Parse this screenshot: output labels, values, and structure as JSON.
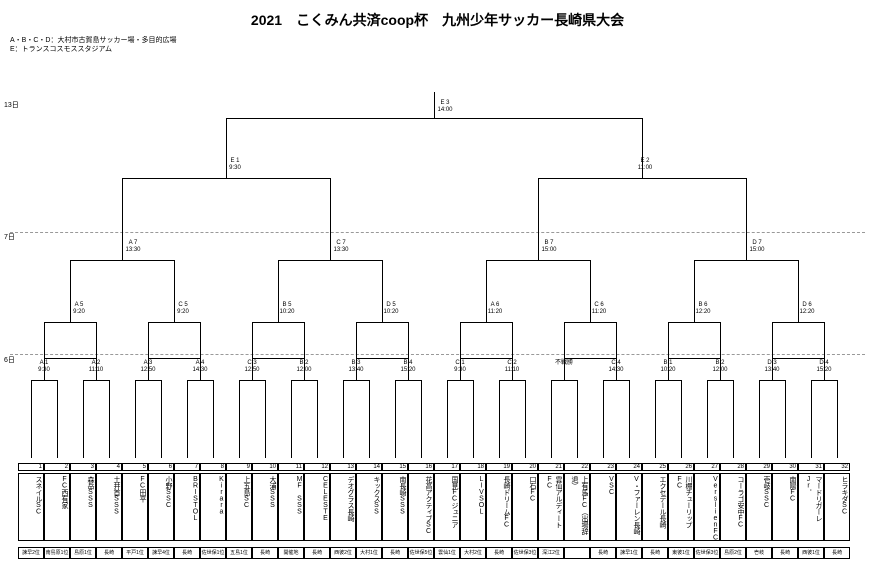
{
  "title": "2021　こくみん共済coop杯　九州少年サッカー長崎県大会",
  "venue1": "A・B・C・D：大村市古賀島サッカー場・多目的広場",
  "venue2": "E：トランスコスモススタジアム",
  "rounds": {
    "r13": "13日",
    "r7": "7日",
    "r6": "6日"
  },
  "top": {
    "final": "E 3\n14:00",
    "semi1": "E 1\n9:30",
    "semi2": "E 2\n11:00"
  },
  "qf": {
    "a7": "A 7\n13:30",
    "c7": "C 7\n13:30",
    "b7": "B 7\n15:00",
    "d7": "D 7\n15:00"
  },
  "r2": {
    "a5": "A 5\n9:20",
    "c5": "C 5\n9:20",
    "b5": "B 5\n10:20",
    "d5": "D 5\n10:20",
    "a6": "A 6\n11:20",
    "c6": "C 6\n11:20",
    "b6": "B 6\n12:20",
    "d6": "D 6\n12:20"
  },
  "r1": {
    "a1": "A 1\n9:30",
    "a2": "A 2\n11:10",
    "a3": "A 3\n12:50",
    "a4": "A 4\n14:30",
    "c3": "C 3\n12:50",
    "b2": "B 2\n12:00",
    "b3": "B 3\n13:40",
    "b4": "B 4\n15:20",
    "c1": "C 1\n9:30",
    "c2": "C 2\n11:10",
    "wo": "不戦勝",
    "c4": "C 4\n14:30",
    "b1": "B 1\n10:20",
    "b2b": "B 2\n12:00",
    "d3": "D 3\n13:40",
    "d4": "D 4\n15:20"
  },
  "teams": [
    {
      "n": "1",
      "name": "スネイルSC",
      "b": "諫早2位"
    },
    {
      "n": "2",
      "name": "FC西有家",
      "b": "南島原1位"
    },
    {
      "n": "3",
      "name": "森岳SSS",
      "b": "島原1位"
    },
    {
      "n": "4",
      "name": "土井首SSS",
      "b": "長崎"
    },
    {
      "n": "5",
      "name": "FC田平",
      "b": "平戸1位"
    },
    {
      "n": "6",
      "name": "小野SSC",
      "b": "諫早4位"
    },
    {
      "n": "7",
      "name": "BRISTOL",
      "b": "長崎"
    },
    {
      "n": "8",
      "name": "Kirara",
      "b": "佐世保1位"
    },
    {
      "n": "9",
      "name": "上五島SC",
      "b": "五島1位"
    },
    {
      "n": "10",
      "name": "大浦SSS",
      "b": "長崎"
    },
    {
      "n": "11",
      "name": "MF SSS",
      "b": "開催地"
    },
    {
      "n": "12",
      "name": "CELESTE",
      "b": "長崎"
    },
    {
      "n": "13",
      "name": "デオグラス長崎",
      "b": "西彼2位"
    },
    {
      "n": "14",
      "name": "キックスSS",
      "b": "大村1位"
    },
    {
      "n": "15",
      "name": "南長崎SSS",
      "b": "長崎"
    },
    {
      "n": "16",
      "name": "花高アクティブSC",
      "b": "佐世保5位"
    },
    {
      "n": "17",
      "name": "国見FCジュニア",
      "b": "雲仙1位"
    },
    {
      "n": "18",
      "name": "LIVSOL",
      "b": "大村2位"
    },
    {
      "n": "19",
      "name": "長崎ドリームFC",
      "b": "長崎"
    },
    {
      "n": "20",
      "name": "口石FC",
      "b": "佐世保3位"
    },
    {
      "n": "21",
      "name": "雲仙アルディートFC",
      "b": "深江2位"
    },
    {
      "n": "22",
      "name": "上有馬FC（出場辞退）",
      "b": ""
    },
    {
      "n": "23",
      "name": "VSC",
      "b": "長崎"
    },
    {
      "n": "24",
      "name": "V・ファーレン長崎",
      "b": "諫早1位"
    },
    {
      "n": "25",
      "name": "エクセデール長崎",
      "b": "長崎"
    },
    {
      "n": "26",
      "name": "川棚チューリップFC",
      "b": "東彼1位"
    },
    {
      "n": "27",
      "name": "VerslienFC",
      "b": "佐世保3位"
    },
    {
      "n": "28",
      "name": "コーラゴ安中FC",
      "b": "島原2位"
    },
    {
      "n": "29",
      "name": "壱岐SSC",
      "b": "壱岐"
    },
    {
      "n": "30",
      "name": "南陽FC",
      "b": "長崎"
    },
    {
      "n": "31",
      "name": "マードリガーレJr．",
      "b": "西彼1位"
    },
    {
      "n": "32",
      "name": "ヒラキダSC",
      "b": "長崎"
    }
  ]
}
